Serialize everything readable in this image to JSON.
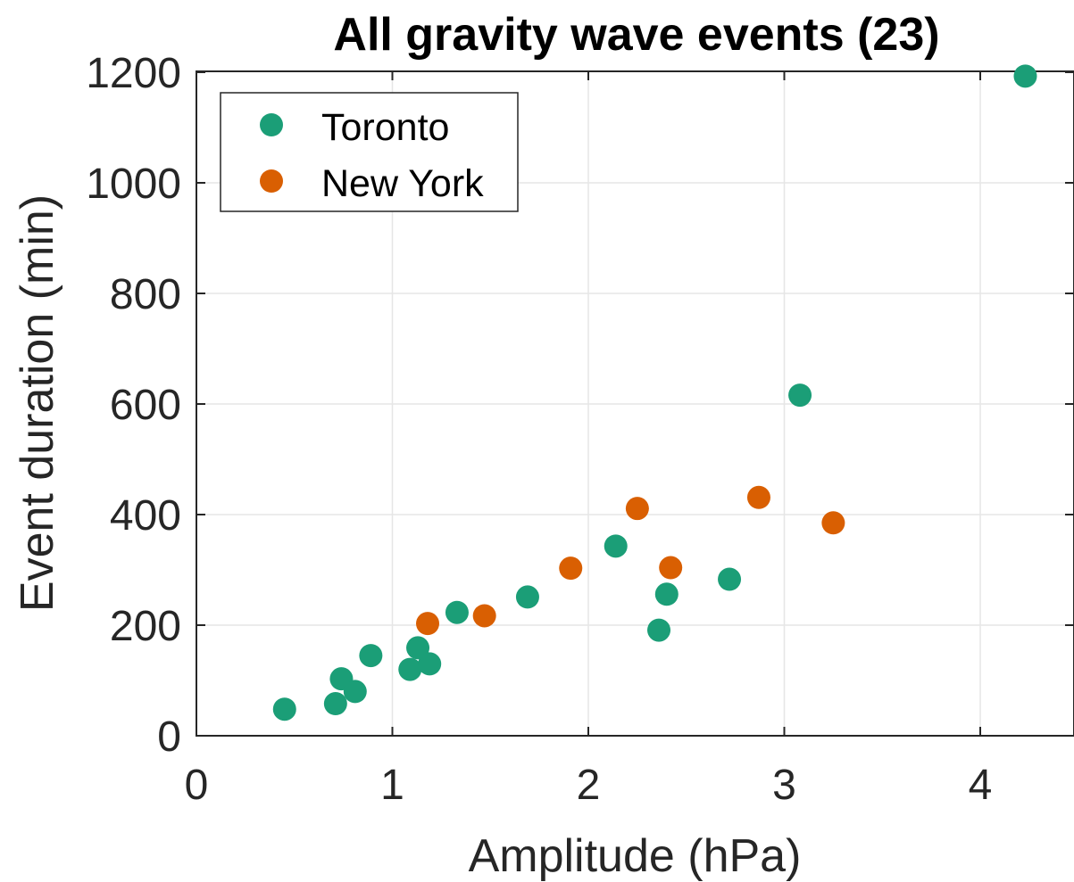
{
  "colors": {
    "toronto": "#1b9e77",
    "new_york": "#d95f02",
    "grid": "#e6e6e6",
    "axis": "#262626"
  },
  "chart_data": {
    "type": "scatter",
    "title": "All gravity wave events (23)",
    "xlabel": "Amplitude (hPa)",
    "ylabel": "Event duration (min)",
    "xlim": [
      0,
      4.5
    ],
    "ylim": [
      0,
      1200
    ],
    "xticks": [
      "0",
      "1",
      "2",
      "3",
      "4"
    ],
    "yticks": [
      "0",
      "200",
      "400",
      "600",
      "800",
      "1000",
      "1200"
    ],
    "grid": true,
    "legend_position": "top-left",
    "series": [
      {
        "name": "Toronto",
        "color": "#1b9e77",
        "points": [
          [
            0.45,
            48
          ],
          [
            0.71,
            58
          ],
          [
            0.74,
            103
          ],
          [
            0.81,
            80
          ],
          [
            0.89,
            145
          ],
          [
            1.09,
            120
          ],
          [
            1.13,
            159
          ],
          [
            1.19,
            130
          ],
          [
            1.33,
            223
          ],
          [
            1.69,
            251
          ],
          [
            2.14,
            343
          ],
          [
            2.36,
            191
          ],
          [
            2.4,
            256
          ],
          [
            2.72,
            283
          ],
          [
            3.08,
            616
          ],
          [
            4.23,
            1193
          ]
        ]
      },
      {
        "name": "New York",
        "color": "#d95f02",
        "points": [
          [
            1.18,
            203
          ],
          [
            1.47,
            217
          ],
          [
            1.91,
            303
          ],
          [
            2.25,
            411
          ],
          [
            2.42,
            304
          ],
          [
            2.87,
            431
          ],
          [
            3.25,
            385
          ]
        ]
      }
    ]
  }
}
